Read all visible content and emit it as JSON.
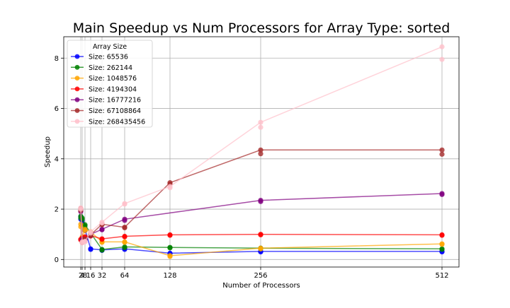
{
  "chart_data": {
    "type": "line",
    "title": "Main Speedup vs Num Processors for Array Type: sorted",
    "xlabel": "Number of Processors",
    "ylabel": "Speedup",
    "x_ticks": [
      2,
      4,
      8,
      16,
      32,
      64,
      128,
      256,
      512
    ],
    "x_tick_labels": [
      "2",
      "4",
      "8",
      "16",
      "32",
      "64",
      "128",
      "256",
      "512"
    ],
    "y_ticks": [
      0,
      2,
      4,
      6,
      8
    ],
    "xlim": [
      -22,
      536
    ],
    "ylim": [
      -0.3,
      8.85
    ],
    "grid": true,
    "legend": {
      "title": "Array Size",
      "placement": "top-left"
    },
    "series": [
      {
        "name": "Size: 65536",
        "color": "#0000ff",
        "points": [
          [
            2,
            1.7
          ],
          [
            4,
            1.55
          ],
          [
            8,
            1.2
          ],
          [
            16,
            0.42
          ],
          [
            32,
            0.38
          ],
          [
            64,
            0.42
          ],
          [
            128,
            0.25
          ],
          [
            256,
            0.32
          ],
          [
            512,
            0.32
          ]
        ],
        "extra_points": [
          [
            2,
            1.6
          ],
          [
            4,
            1.45
          ],
          [
            8,
            1.15
          ],
          [
            16,
            0.4
          ],
          [
            32,
            0.36
          ],
          [
            64,
            0.4
          ],
          [
            128,
            0.23
          ],
          [
            256,
            0.3
          ],
          [
            512,
            0.3
          ]
        ]
      },
      {
        "name": "Size: 262144",
        "color": "#008000",
        "points": [
          [
            2,
            1.72
          ],
          [
            4,
            1.65
          ],
          [
            8,
            1.38
          ],
          [
            16,
            1.05
          ],
          [
            32,
            0.4
          ],
          [
            64,
            0.5
          ],
          [
            128,
            0.48
          ],
          [
            256,
            0.45
          ],
          [
            512,
            0.42
          ]
        ],
        "extra_points": [
          [
            2,
            1.65
          ],
          [
            4,
            1.6
          ],
          [
            8,
            1.33
          ],
          [
            16,
            1.0
          ],
          [
            32,
            0.37
          ],
          [
            64,
            0.47
          ],
          [
            128,
            0.46
          ],
          [
            256,
            0.43
          ],
          [
            512,
            0.4
          ]
        ]
      },
      {
        "name": "Size: 1048576",
        "color": "#ffa500",
        "points": [
          [
            2,
            1.4
          ],
          [
            4,
            0.9
          ],
          [
            8,
            1.2
          ],
          [
            16,
            1.1
          ],
          [
            32,
            0.7
          ],
          [
            64,
            0.7
          ],
          [
            128,
            0.15
          ],
          [
            256,
            0.45
          ],
          [
            512,
            0.62
          ]
        ],
        "extra_points": [
          [
            2,
            1.3
          ],
          [
            4,
            0.85
          ],
          [
            8,
            1.15
          ],
          [
            16,
            1.05
          ],
          [
            32,
            0.68
          ],
          [
            64,
            0.68
          ],
          [
            128,
            0.12
          ],
          [
            256,
            0.42
          ],
          [
            512,
            0.6
          ]
        ]
      },
      {
        "name": "Size: 4194304",
        "color": "#ff0000",
        "points": [
          [
            2,
            0.8
          ],
          [
            4,
            0.85
          ],
          [
            8,
            0.9
          ],
          [
            16,
            0.95
          ],
          [
            32,
            0.82
          ],
          [
            64,
            0.92
          ],
          [
            128,
            0.98
          ],
          [
            256,
            1.0
          ],
          [
            512,
            0.98
          ]
        ],
        "extra_points": [
          [
            2,
            0.78
          ],
          [
            4,
            0.83
          ],
          [
            8,
            0.88
          ],
          [
            16,
            0.93
          ],
          [
            32,
            0.8
          ],
          [
            64,
            0.9
          ],
          [
            128,
            0.96
          ],
          [
            256,
            0.98
          ],
          [
            512,
            0.96
          ]
        ]
      },
      {
        "name": "Size: 16777216",
        "color": "#800080",
        "points": [
          [
            2,
            1.95
          ],
          [
            4,
            0.8
          ],
          [
            8,
            0.78
          ],
          [
            16,
            1.0
          ],
          [
            32,
            1.2
          ],
          [
            64,
            1.6
          ],
          [
            256,
            2.35
          ],
          [
            512,
            2.62
          ]
        ],
        "extra_points": [
          [
            2,
            1.9
          ],
          [
            4,
            0.75
          ],
          [
            8,
            0.75
          ],
          [
            16,
            0.95
          ],
          [
            32,
            1.18
          ],
          [
            64,
            1.55
          ],
          [
            256,
            2.3
          ],
          [
            512,
            2.58
          ]
        ]
      },
      {
        "name": "Size: 67108864",
        "color": "#a52a2a",
        "points": [
          [
            2,
            2.02
          ],
          [
            4,
            0.7
          ],
          [
            8,
            0.82
          ],
          [
            16,
            0.98
          ],
          [
            32,
            1.4
          ],
          [
            64,
            1.28
          ],
          [
            128,
            3.05
          ],
          [
            256,
            4.35
          ],
          [
            512,
            4.35
          ]
        ],
        "extra_points": [
          [
            2,
            1.95
          ],
          [
            4,
            0.68
          ],
          [
            8,
            0.8
          ],
          [
            16,
            0.96
          ],
          [
            32,
            1.38
          ],
          [
            64,
            1.26
          ],
          [
            128,
            3.0
          ],
          [
            256,
            4.2
          ],
          [
            512,
            4.18
          ]
        ]
      },
      {
        "name": "Size: 268435456",
        "color": "#ffc0cb",
        "points": [
          [
            2,
            2.05
          ],
          [
            4,
            0.7
          ],
          [
            8,
            0.72
          ],
          [
            16,
            1.1
          ],
          [
            32,
            1.48
          ],
          [
            64,
            2.22
          ],
          [
            128,
            2.9
          ],
          [
            256,
            5.45
          ],
          [
            512,
            8.45
          ]
        ],
        "extra_points": [
          [
            2,
            2.0
          ],
          [
            4,
            0.66
          ],
          [
            8,
            0.7
          ],
          [
            16,
            1.05
          ],
          [
            32,
            1.45
          ],
          [
            64,
            2.2
          ],
          [
            128,
            2.85
          ],
          [
            256,
            5.25
          ],
          [
            512,
            7.95
          ]
        ]
      }
    ]
  }
}
